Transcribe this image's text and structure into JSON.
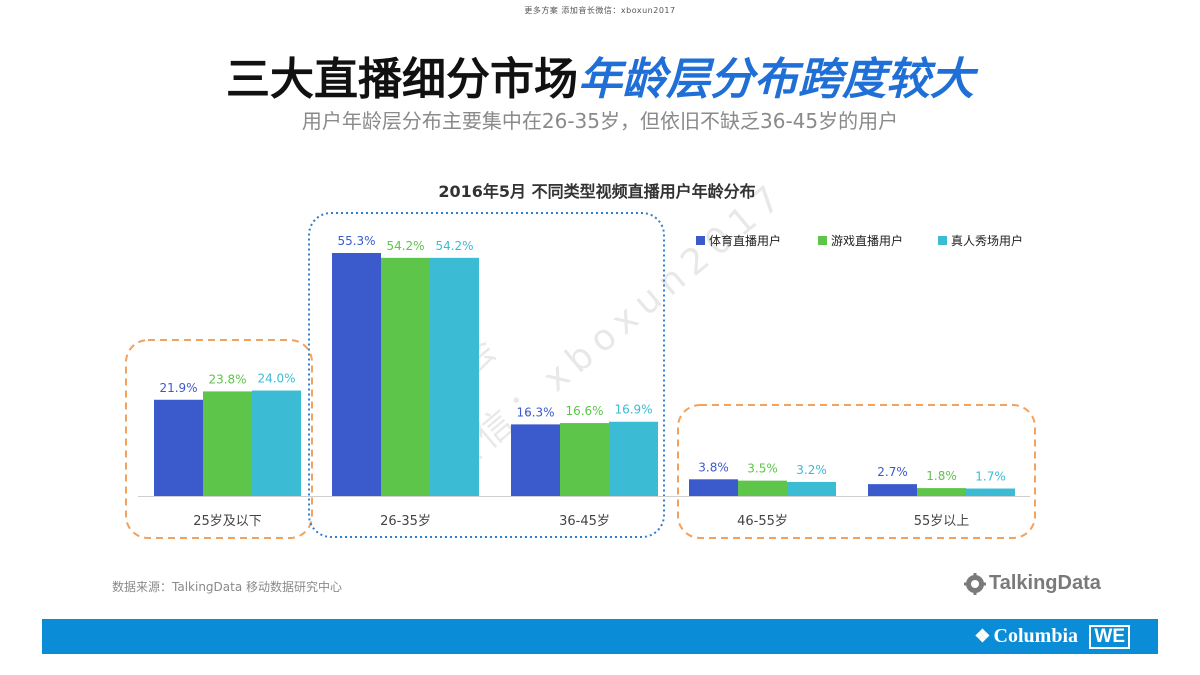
{
  "header": {
    "top_note": "更多方案 添加音长微信：xboxun2017",
    "title_part1": "三大直播细分市场",
    "title_part2": "年龄层分布跨度较大",
    "subtitle": "用户年龄层分布主要集中在26-35岁，但依旧不缺乏36-45岁的用户"
  },
  "chart_data": {
    "type": "bar",
    "title": "2016年5月  不同类型视频直播用户年龄分布",
    "categories": [
      "25岁及以下",
      "26-35岁",
      "36-45岁",
      "46-55岁",
      "55岁以上"
    ],
    "series": [
      {
        "name": "体育直播用户",
        "values": [
          21.9,
          55.3,
          16.3,
          3.8,
          2.7
        ],
        "labels": [
          "21.9%",
          "55.3%",
          "16.3%",
          "3.8%",
          "2.7%"
        ],
        "color": "#3b5bcc"
      },
      {
        "name": "游戏直播用户",
        "values": [
          23.8,
          54.2,
          16.6,
          3.5,
          1.8
        ],
        "labels": [
          "23.8%",
          "54.2%",
          "16.6%",
          "3.5%",
          "1.8%"
        ],
        "color": "#5dc54a"
      },
      {
        "name": "真人秀场用户",
        "values": [
          24.0,
          54.2,
          16.9,
          3.2,
          1.7
        ],
        "labels": [
          "24.0%",
          "54.2%",
          "16.9%",
          "3.2%",
          "1.7%"
        ],
        "color": "#3bbcd4"
      }
    ],
    "xlabel": "",
    "ylabel": "",
    "ylim": [
      0,
      55.3
    ],
    "grid": false,
    "legend_position": "top-right",
    "highlight_groups": [
      {
        "categories": [
          "25岁及以下"
        ],
        "style": "orange-dashed",
        "color": "#f2a25c"
      },
      {
        "categories": [
          "26-35岁",
          "36-45岁"
        ],
        "style": "blue-dotted",
        "color": "#2f7fd0"
      },
      {
        "categories": [
          "46-55岁",
          "55岁以上"
        ],
        "style": "orange-dashed",
        "color": "#f2a25c"
      }
    ]
  },
  "watermark": {
    "line1": "白金会",
    "line2": "微信：xboxun2017"
  },
  "footer": {
    "source": "数据来源：TalkingData 移动数据研究中心",
    "talkingdata_logo": "TalkingData",
    "columbia_logo": "Columbia",
    "we_logo": "WE"
  }
}
